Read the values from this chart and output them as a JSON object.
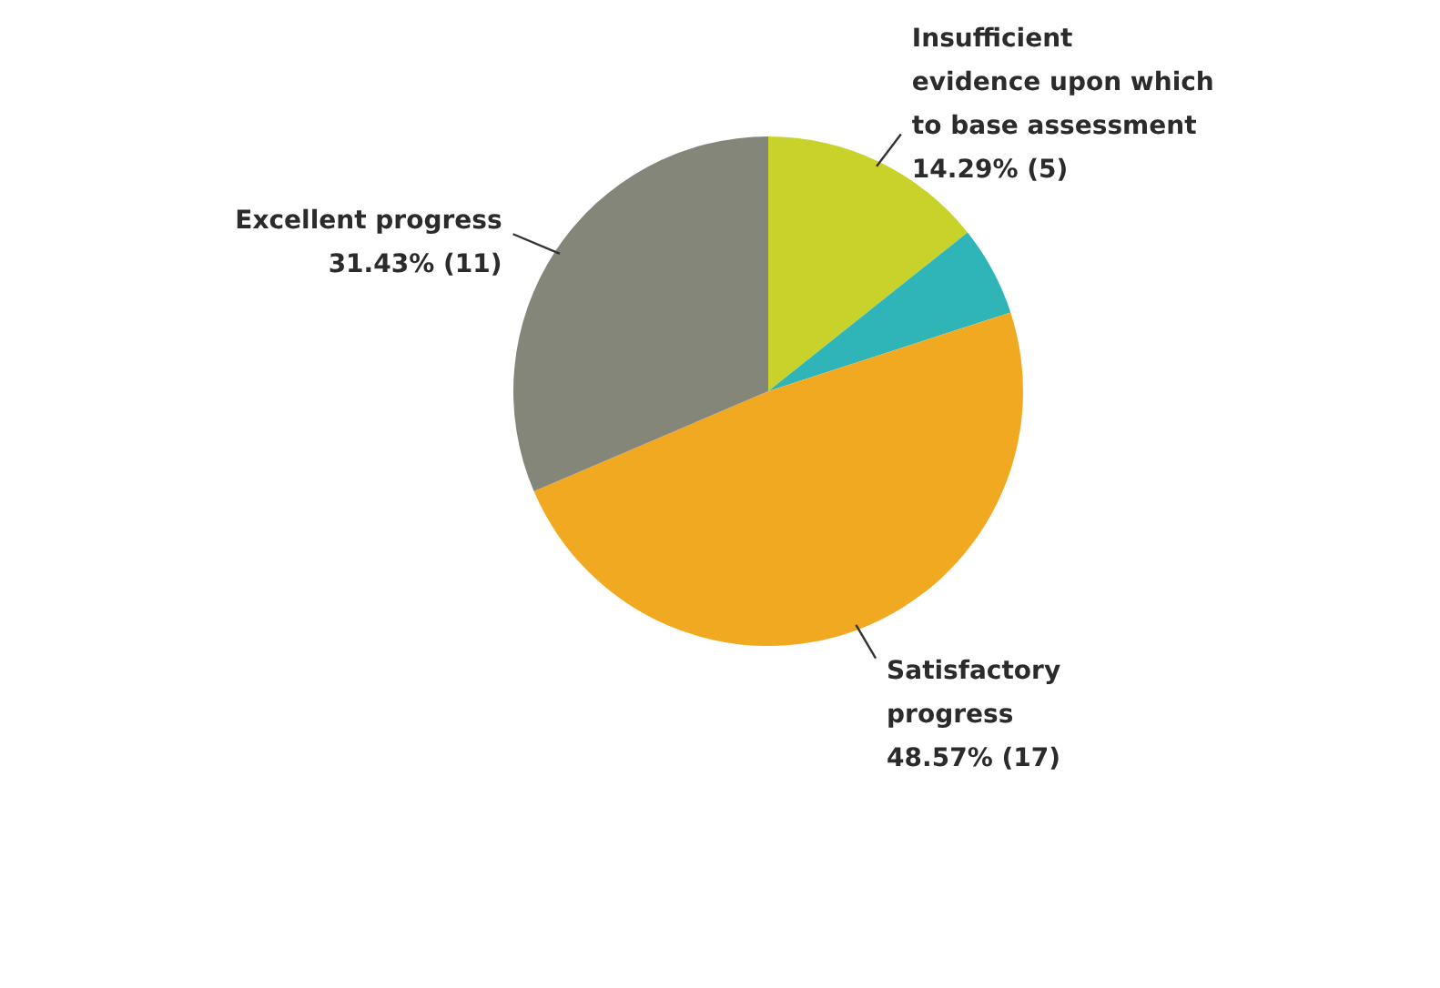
{
  "chart_data": {
    "type": "pie",
    "categories": [
      "Insufficient evidence upon which to base assessment",
      null,
      "Satisfactory progress",
      "Excellent progress"
    ],
    "values": [
      14.29,
      5.71,
      48.57,
      31.43
    ],
    "value_labels": [
      "14.29% (5)",
      null,
      "48.57% (17)",
      "31.43% (11)"
    ],
    "colors": [
      "#c8d22a",
      "#2fb5b8",
      "#f2a922",
      "#85867a"
    ]
  }
}
